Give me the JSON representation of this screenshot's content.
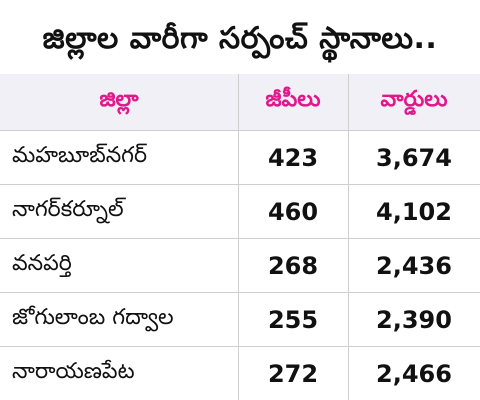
{
  "title": "జిల్లాల వారీగా సర్పంచ్ స్థానాలు..",
  "table": {
    "headers": [
      "జిల్లా",
      "జీపీలు",
      "వార్డులు"
    ],
    "rows": [
      [
        "మహబూబ్‌నగర్",
        "423",
        "3,674"
      ],
      [
        "నాగర్‌కర్నూల్",
        "460",
        "4,102"
      ],
      [
        "వనపర్తి",
        "268",
        "2,436"
      ],
      [
        "జోగులాంబ గద్వాల",
        "255",
        "2,390"
      ],
      [
        "నారాయణపేట",
        "272",
        "2,466"
      ]
    ]
  },
  "colors": {
    "header_text": "#e0198b",
    "header_bg": "#f2f0f7",
    "grid": "#cfcfcf",
    "text": "#111111"
  }
}
